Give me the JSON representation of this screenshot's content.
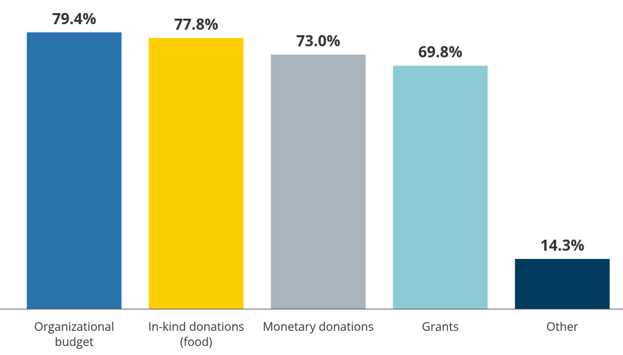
{
  "chart_data": {
    "type": "bar",
    "categories": [
      "Organizational budget",
      "In-kind donations (food)",
      "Monetary donations",
      "Grants",
      "Other"
    ],
    "values": [
      79.4,
      77.8,
      73.0,
      69.8,
      14.3
    ],
    "value_labels": [
      "79.4%",
      "77.8%",
      "73.0%",
      "69.8%",
      "14.3%"
    ],
    "colors": [
      "#2a74ae",
      "#fccf00",
      "#a9b4bd",
      "#8ccad4",
      "#003a5c"
    ]
  }
}
